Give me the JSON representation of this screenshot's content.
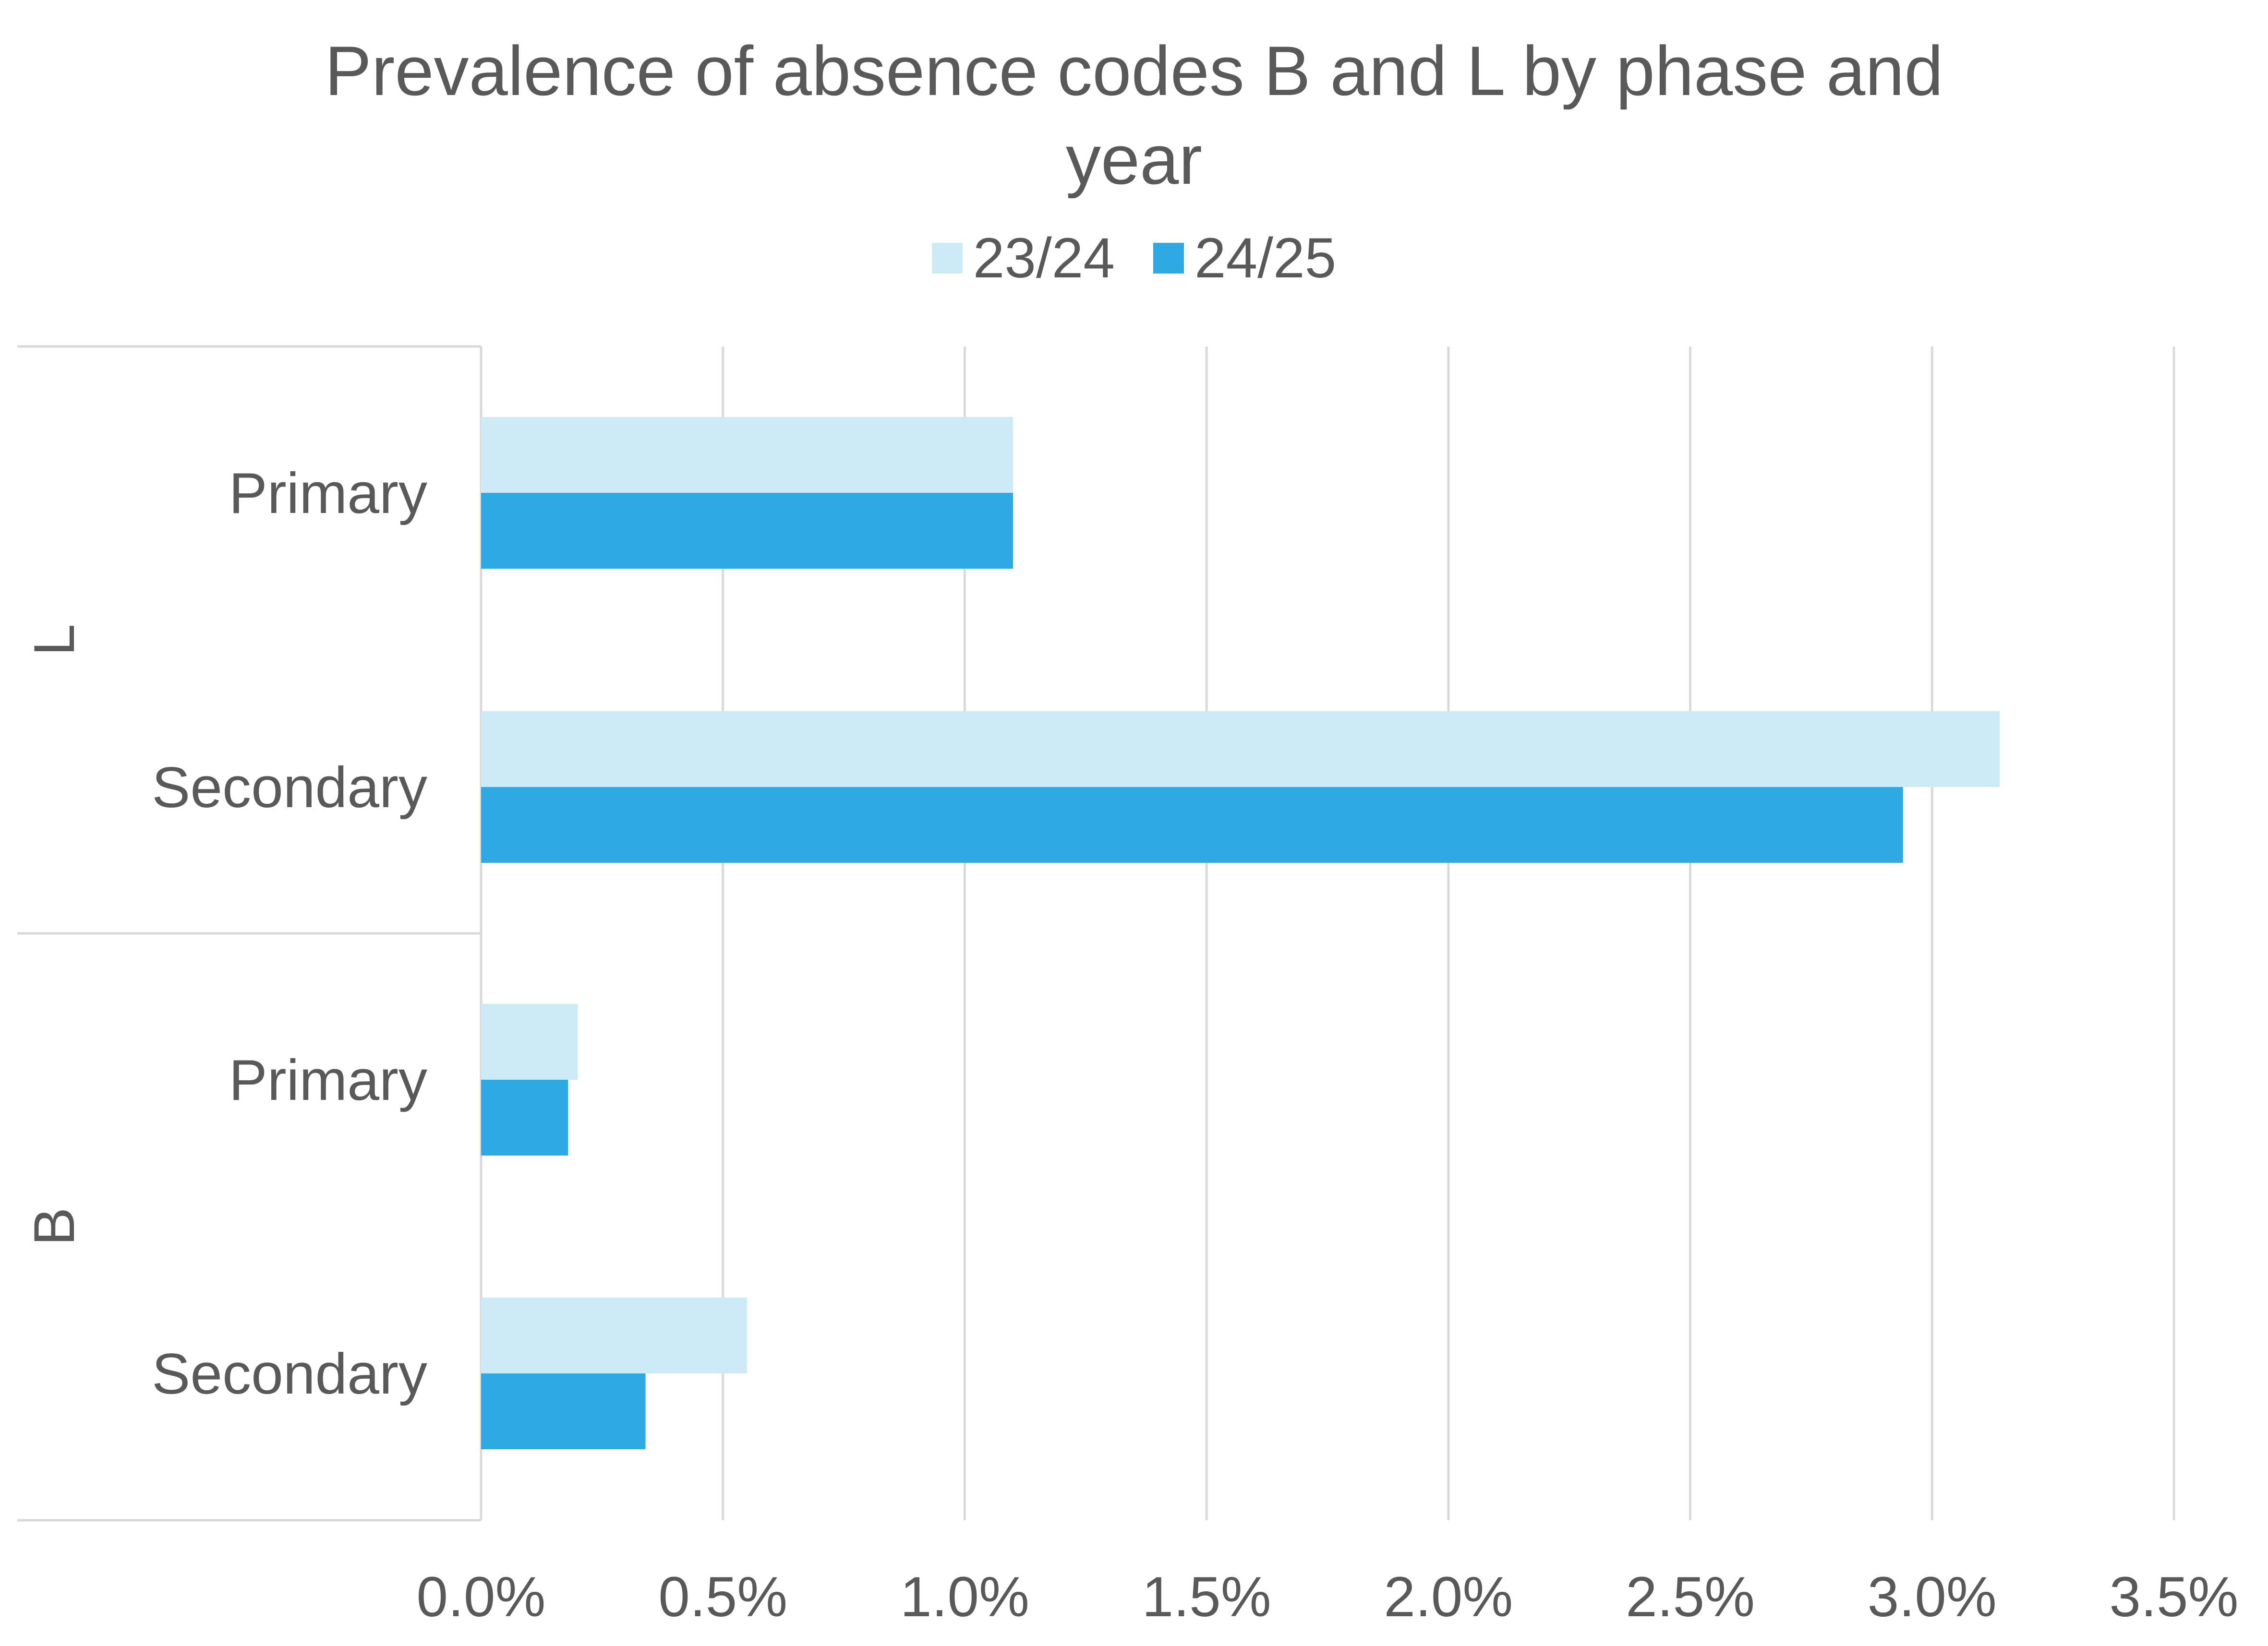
{
  "chart_data": {
    "type": "bar",
    "orientation": "horizontal",
    "title_lines": [
      "Prevalence of absence codes B and L by phase and",
      "year"
    ],
    "xlabel": "",
    "ylabel": "",
    "xlim": [
      0,
      3.5
    ],
    "x_ticks": [
      "0.0%",
      "0.5%",
      "1.0%",
      "1.5%",
      "2.0%",
      "2.5%",
      "3.0%",
      "3.5%"
    ],
    "grid": true,
    "legend_position": "top",
    "groups": [
      {
        "name": "L",
        "categories": [
          "Primary",
          "Secondary"
        ]
      },
      {
        "name": "B",
        "categories": [
          "Primary",
          "Secondary"
        ]
      }
    ],
    "series": [
      {
        "name": "23/24",
        "color": "#CDEAF7",
        "values": [
          1.1,
          3.14,
          0.2,
          0.55
        ]
      },
      {
        "name": "24/25",
        "color": "#2EA9E1",
        "values": [
          1.1,
          2.94,
          0.18,
          0.34
        ]
      }
    ],
    "unit": "%"
  }
}
